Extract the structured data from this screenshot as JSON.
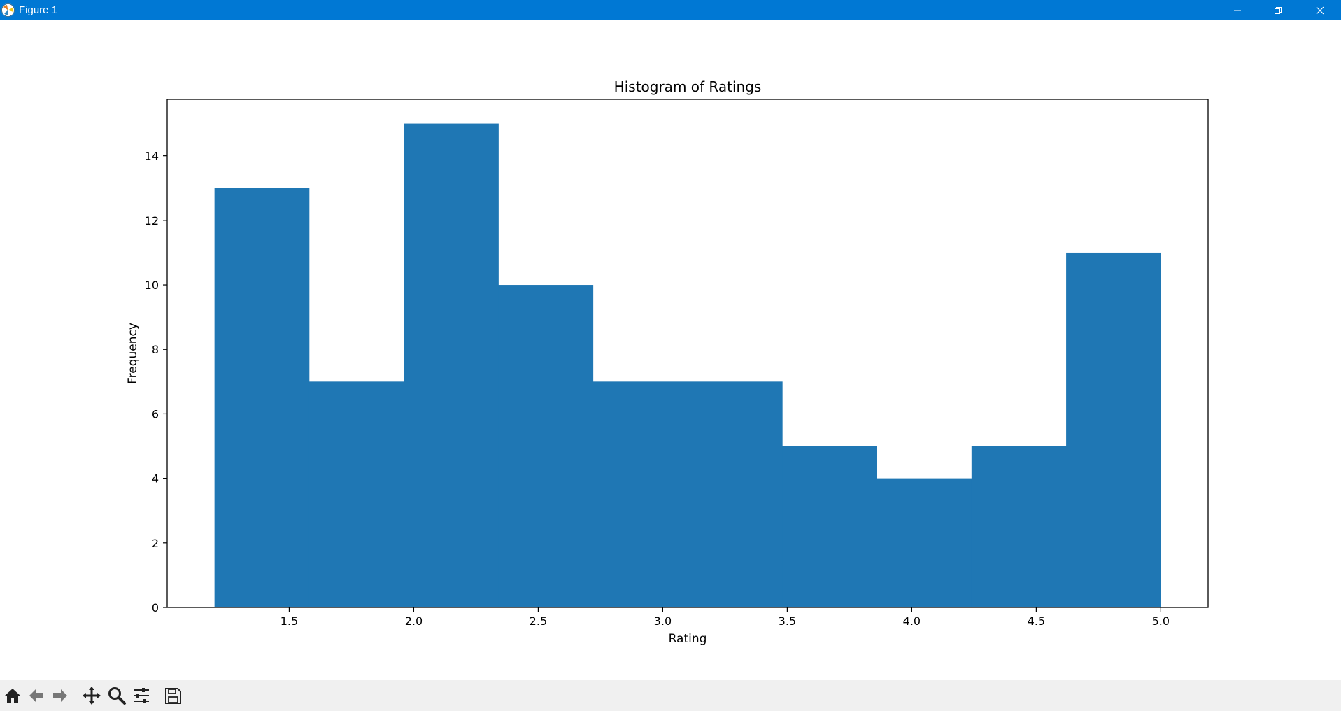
{
  "window": {
    "title": "Figure 1",
    "controls": [
      "minimize",
      "maximize",
      "close"
    ]
  },
  "toolbar": {
    "buttons": [
      {
        "icon": "home-icon",
        "action": "Home"
      },
      {
        "icon": "back-arrow-icon",
        "action": "Back"
      },
      {
        "icon": "forward-arrow-icon",
        "action": "Forward"
      },
      {
        "icon": "pan-move-icon",
        "action": "Pan"
      },
      {
        "icon": "zoom-magnifier-icon",
        "action": "Zoom"
      },
      {
        "icon": "configure-subplots-icon",
        "action": "Subplots"
      },
      {
        "icon": "save-disk-icon",
        "action": "Save"
      }
    ]
  },
  "colors": {
    "titlebar": "#0078d4",
    "bar_fill": "#1f77b4",
    "toolbar_bg": "#f0f0f0"
  },
  "chart_data": {
    "type": "bar",
    "title": "Histogram of Ratings",
    "xlabel": "Rating",
    "ylabel": "Frequency",
    "bin_edges": [
      1.2,
      1.58,
      1.96,
      2.34,
      2.72,
      3.1,
      3.48,
      3.86,
      4.24,
      4.62,
      5.0
    ],
    "values": [
      13,
      7,
      15,
      10,
      7,
      7,
      5,
      4,
      5,
      11
    ],
    "xlim": [
      1.01,
      5.19
    ],
    "ylim": [
      0,
      15.75
    ],
    "xticks": [
      "1.5",
      "2.0",
      "2.5",
      "3.0",
      "3.5",
      "4.0",
      "4.5",
      "5.0"
    ],
    "xtick_values": [
      1.5,
      2.0,
      2.5,
      3.0,
      3.5,
      4.0,
      4.5,
      5.0
    ],
    "yticks": [
      "0",
      "2",
      "4",
      "6",
      "8",
      "10",
      "12",
      "14"
    ],
    "ytick_values": [
      0,
      2,
      4,
      6,
      8,
      10,
      12,
      14
    ],
    "grid": false,
    "legend": null
  }
}
